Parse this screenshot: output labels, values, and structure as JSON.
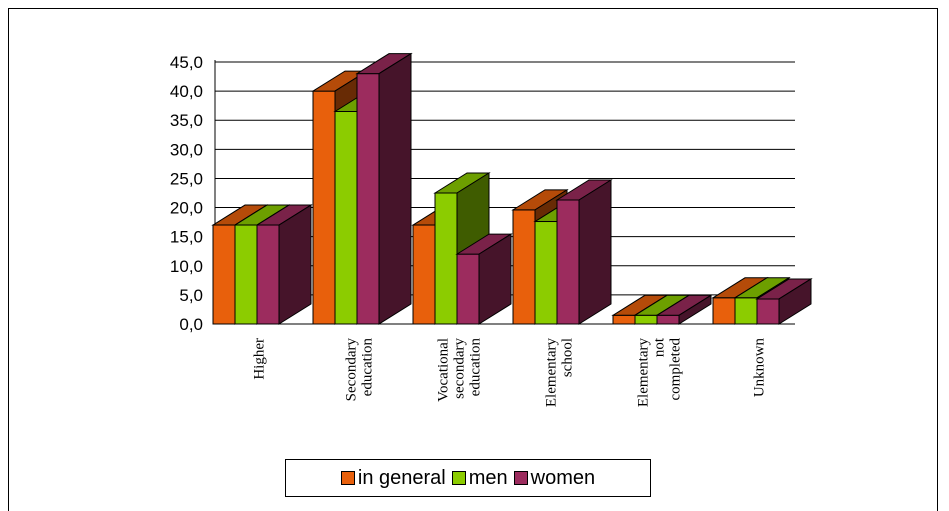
{
  "chart_data": {
    "type": "bar",
    "categories": [
      [
        "Higher"
      ],
      [
        "Secondary",
        "education"
      ],
      [
        "Vocational",
        "secondary",
        "education"
      ],
      [
        "Elementary",
        "school"
      ],
      [
        "Elementary",
        "not",
        "completed"
      ],
      [
        "Unknown"
      ]
    ],
    "series": [
      {
        "name": "in general",
        "color": "#e8600c",
        "values": [
          17.0,
          40.0,
          17.0,
          19.6,
          1.5,
          4.5
        ]
      },
      {
        "name": "men",
        "color": "#8ccc00",
        "values": [
          17.0,
          36.5,
          22.5,
          17.6,
          1.5,
          4.5
        ]
      },
      {
        "name": "women",
        "color": "#9c2c5e",
        "values": [
          17.0,
          43.0,
          12.0,
          21.3,
          1.5,
          4.3
        ]
      }
    ],
    "yticks": [
      "0,0",
      "5,0",
      "10,0",
      "15,0",
      "20,0",
      "25,0",
      "30,0",
      "35,0",
      "40,0",
      "45,0"
    ],
    "ylim": [
      0,
      45
    ],
    "grid": true,
    "legend_position": "bottom"
  }
}
